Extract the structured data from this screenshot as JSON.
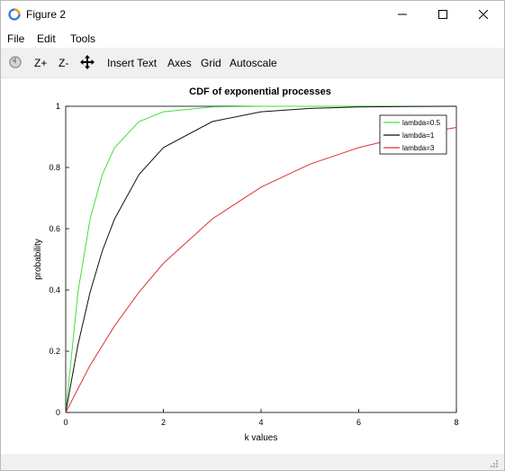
{
  "window": {
    "title": "Figure 2",
    "icon": "octave-logo-icon",
    "controls": {
      "minimize": "minimize-icon",
      "maximize": "maximize-icon",
      "close": "close-icon"
    }
  },
  "menu": {
    "items": [
      "File",
      "Edit",
      "Tools"
    ]
  },
  "toolbar": {
    "rotate_icon": "rotate-icon",
    "zoom_in": "Z+",
    "zoom_out": "Z-",
    "pan_icon": "pan-icon",
    "insert_text": "Insert Text",
    "axes": "Axes",
    "grid": "Grid",
    "autoscale": "Autoscale"
  },
  "chart_data": {
    "type": "line",
    "title": "CDF of exponential processes",
    "xlabel": "k values",
    "ylabel": "probability",
    "xlim": [
      0,
      8
    ],
    "ylim": [
      0,
      1
    ],
    "xticks": [
      "0",
      "2",
      "4",
      "6",
      "8"
    ],
    "yticks": [
      "0",
      "0.2",
      "0.4",
      "0.6",
      "0.8",
      "1"
    ],
    "grid": false,
    "legend_position": "top-right",
    "series": [
      {
        "name": "lambda=0.5",
        "color": "#44dd44",
        "x": [
          0,
          0.25,
          0.5,
          0.75,
          1,
          1.5,
          2,
          3,
          4,
          5,
          6,
          7,
          8
        ],
        "y": [
          0,
          0.393,
          0.632,
          0.777,
          0.865,
          0.95,
          0.982,
          0.998,
          1.0,
          1.0,
          1.0,
          1.0,
          1.0
        ]
      },
      {
        "name": "lambda=1",
        "color": "#111111",
        "x": [
          0,
          0.25,
          0.5,
          0.75,
          1,
          1.5,
          2,
          3,
          4,
          5,
          6,
          7,
          8
        ],
        "y": [
          0,
          0.221,
          0.393,
          0.528,
          0.632,
          0.777,
          0.865,
          0.95,
          0.982,
          0.993,
          0.998,
          0.999,
          1.0
        ]
      },
      {
        "name": "lambda=3",
        "color": "#dd3333",
        "x": [
          0,
          0.5,
          1,
          1.5,
          2,
          3,
          4,
          5,
          6,
          7,
          8
        ],
        "y": [
          0,
          0.154,
          0.283,
          0.393,
          0.487,
          0.632,
          0.736,
          0.811,
          0.865,
          0.903,
          0.931
        ]
      }
    ]
  }
}
